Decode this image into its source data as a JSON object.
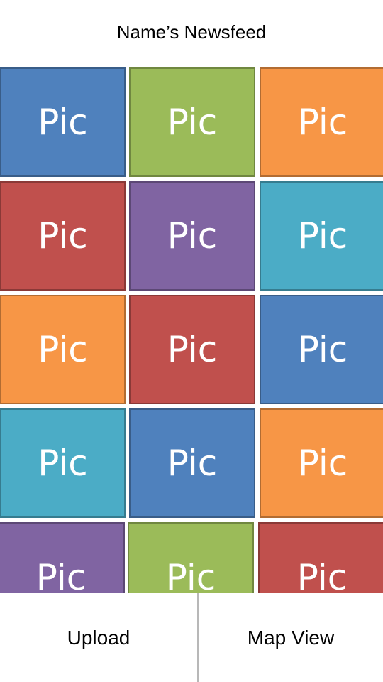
{
  "header": {
    "title": "Name’s Newsfeed"
  },
  "feed": {
    "tiles": [
      {
        "label": "Pic",
        "color": "#4f81bd"
      },
      {
        "label": "Pic",
        "color": "#9bbb59"
      },
      {
        "label": "Pic",
        "color": "#f79646"
      },
      {
        "label": "Pic",
        "color": "#c0504d"
      },
      {
        "label": "Pic",
        "color": "#8064a2"
      },
      {
        "label": "Pic",
        "color": "#4bacc6"
      },
      {
        "label": "Pic",
        "color": "#f79646"
      },
      {
        "label": "Pic",
        "color": "#c0504d"
      },
      {
        "label": "Pic",
        "color": "#4f81bd"
      },
      {
        "label": "Pic",
        "color": "#4bacc6"
      },
      {
        "label": "Pic",
        "color": "#4f81bd"
      },
      {
        "label": "Pic",
        "color": "#f79646"
      },
      {
        "label": "Pic",
        "color": "#8064a2"
      },
      {
        "label": "Pic",
        "color": "#9bbb59"
      },
      {
        "label": "Pic",
        "color": "#c0504d"
      }
    ]
  },
  "nav": {
    "upload_label": "Upload",
    "map_view_label": "Map View"
  }
}
